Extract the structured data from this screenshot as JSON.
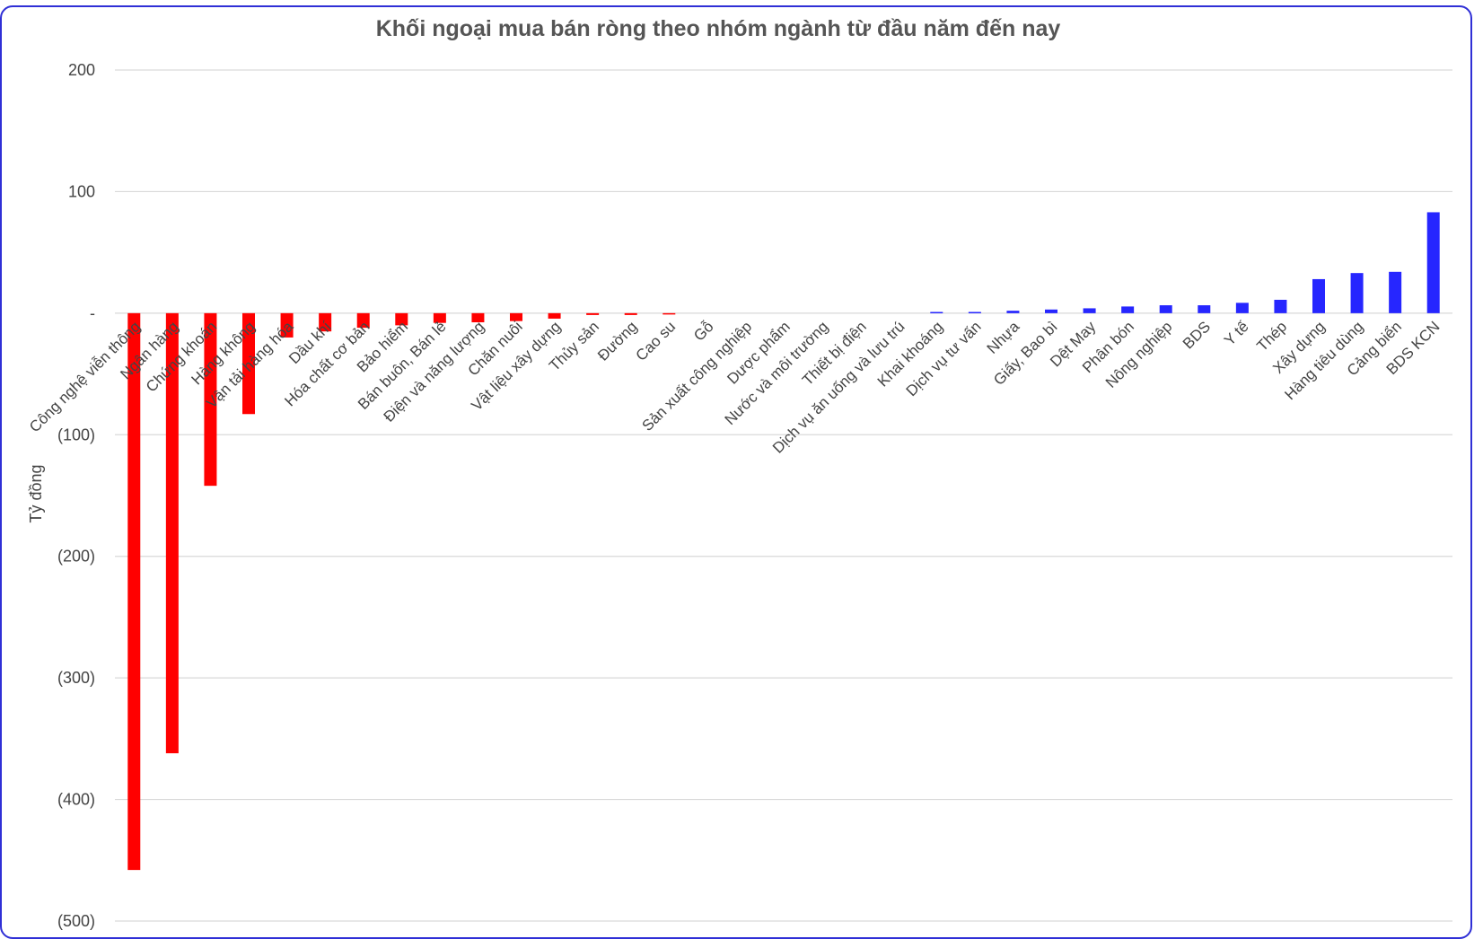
{
  "chart_data": {
    "type": "bar",
    "title": "Khối ngoại mua bán ròng theo nhóm ngành từ đầu năm đến nay",
    "xlabel": "",
    "ylabel": "Tỷ đồng",
    "ylim": [
      -500,
      200
    ],
    "y_ticks": [
      200,
      100,
      0,
      -100,
      -200,
      -300,
      -400,
      -500
    ],
    "y_tick_labels": [
      "200",
      "100",
      "-",
      "(100)",
      "(200)",
      "(300)",
      "(400)",
      "(500)"
    ],
    "grid": true,
    "colors": {
      "negative": "#ff0000",
      "positive": "#2626ff",
      "grid": "#d9d9d9"
    },
    "categories": [
      "Công nghệ viễn thông",
      "Ngân hàng",
      "Chứng khoán",
      "Hàng không",
      "Vận tải hàng hóa",
      "Dầu khí",
      "Hóa chất cơ bản",
      "Bảo hiểm",
      "Bán buôn, Bán lẻ",
      "Điện và năng lượng",
      "Chăn nuôi",
      "Vật liệu xây dựng",
      "Thủy sản",
      "Đường",
      "Cao su",
      "Gỗ",
      "Sản xuất công nghiệp",
      "Dược phẩm",
      "Nước và môi trường",
      "Thiết bị điện",
      "Dịch vụ ăn uống và lưu trú",
      "Khai khoáng",
      "Dịch vụ tư vấn",
      "Nhựa",
      "Giấy, Bao bì",
      "Dệt May",
      "Phân bón",
      "Nông nghiệp",
      "BDS",
      "Y tế",
      "Thép",
      "Xây dựng",
      "Hàng tiêu dùng",
      "Cảng biển",
      "BDS KCN"
    ],
    "values": [
      -458,
      -362,
      -142,
      -83,
      -20,
      -15,
      -12,
      -10,
      -8,
      -7.5,
      -6.5,
      -4.5,
      -1.5,
      -1.5,
      -1,
      0,
      0,
      0,
      0,
      0,
      0,
      1,
      1,
      2,
      3,
      4,
      5.5,
      6.5,
      6.5,
      8.5,
      11,
      28,
      33,
      34,
      83
    ]
  }
}
